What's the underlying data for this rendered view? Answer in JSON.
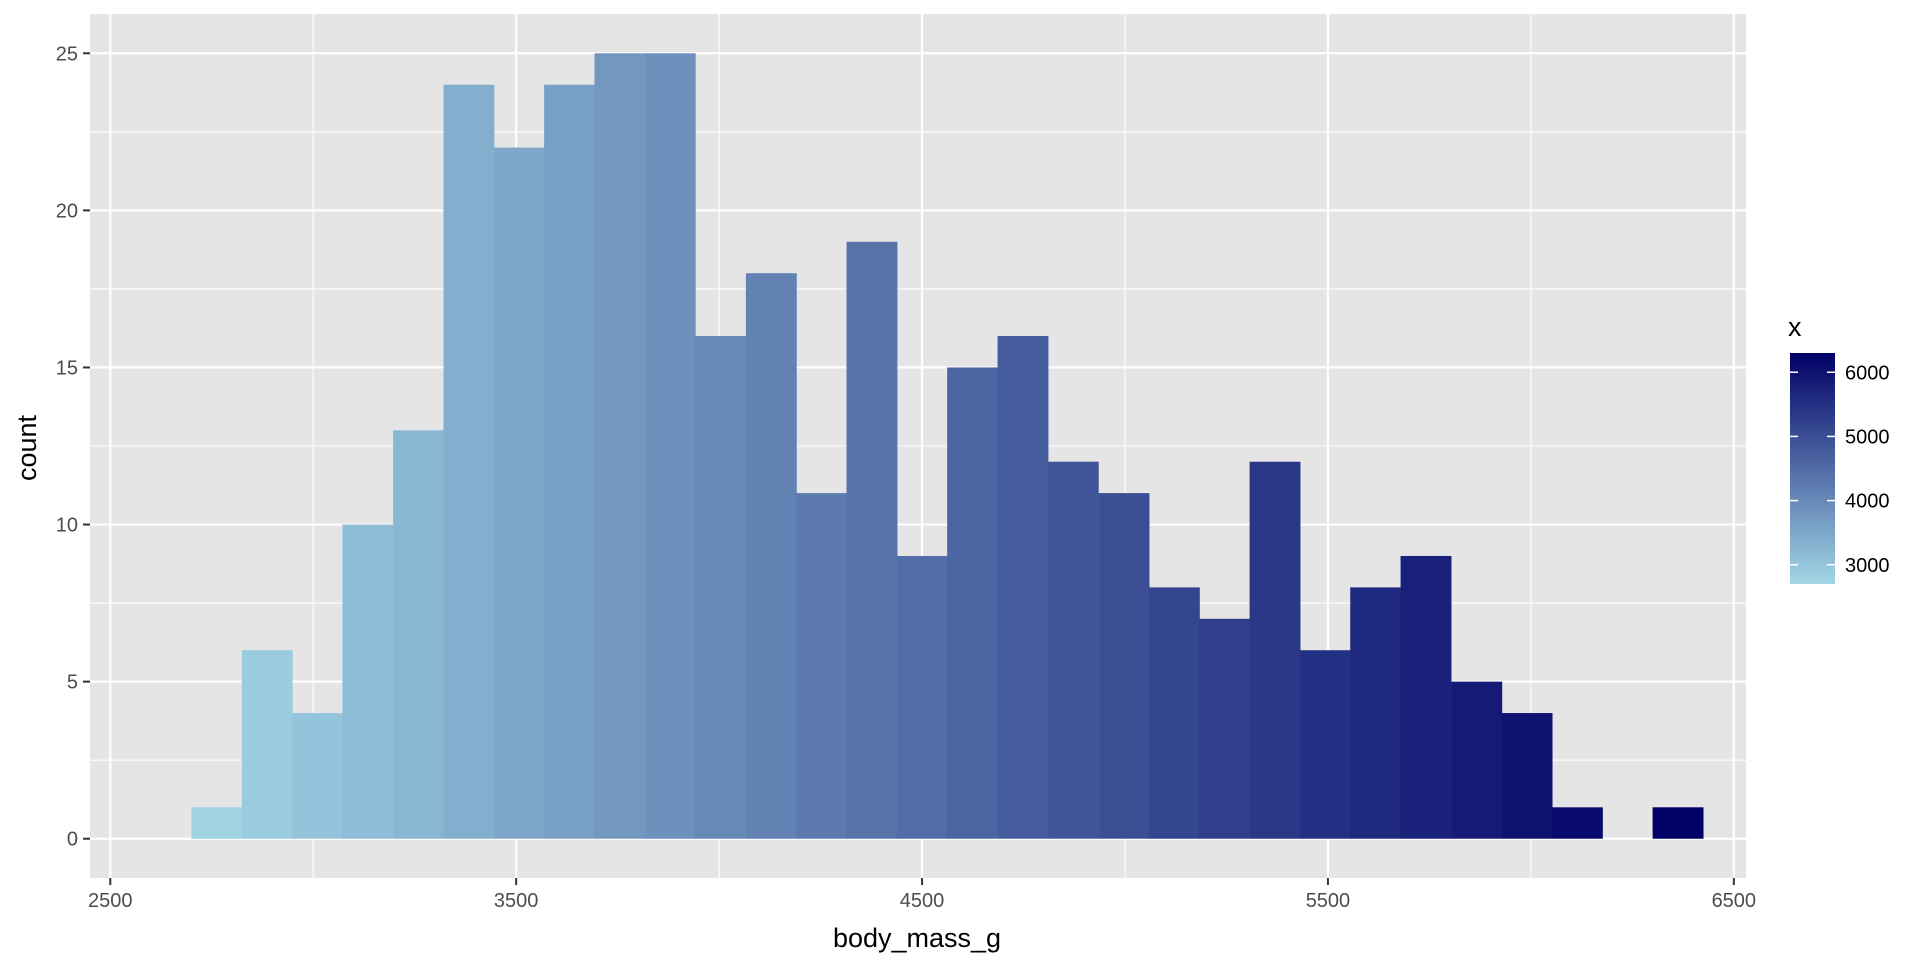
{
  "chart_data": {
    "type": "bar",
    "subtype": "histogram",
    "xlabel": "body_mass_g",
    "ylabel": "count",
    "xlim": [
      2450,
      6530
    ],
    "ylim": [
      -1.25,
      26.25
    ],
    "x_ticks": [
      2500,
      3500,
      4500,
      5500,
      6500
    ],
    "y_ticks": [
      0,
      5,
      10,
      15,
      20,
      25
    ],
    "grid": true,
    "bin_width": 124.14,
    "bins": [
      {
        "x": 2762,
        "count": 1
      },
      {
        "x": 2886,
        "count": 6
      },
      {
        "x": 3010,
        "count": 4
      },
      {
        "x": 3134,
        "count": 10
      },
      {
        "x": 3259,
        "count": 13
      },
      {
        "x": 3383,
        "count": 24
      },
      {
        "x": 3507,
        "count": 22
      },
      {
        "x": 3631,
        "count": 24
      },
      {
        "x": 3755,
        "count": 25
      },
      {
        "x": 3879,
        "count": 25
      },
      {
        "x": 4003,
        "count": 16
      },
      {
        "x": 4128,
        "count": 18
      },
      {
        "x": 4252,
        "count": 11
      },
      {
        "x": 4376,
        "count": 19
      },
      {
        "x": 4500,
        "count": 9
      },
      {
        "x": 4624,
        "count": 15
      },
      {
        "x": 4748,
        "count": 16
      },
      {
        "x": 4872,
        "count": 12
      },
      {
        "x": 4997,
        "count": 11
      },
      {
        "x": 5121,
        "count": 8
      },
      {
        "x": 5245,
        "count": 7
      },
      {
        "x": 5369,
        "count": 12
      },
      {
        "x": 5493,
        "count": 6
      },
      {
        "x": 5617,
        "count": 8
      },
      {
        "x": 5741,
        "count": 9
      },
      {
        "x": 5866,
        "count": 5
      },
      {
        "x": 5990,
        "count": 4
      },
      {
        "x": 6114,
        "count": 1
      },
      {
        "x": 6238,
        "count": 0
      },
      {
        "x": 6362,
        "count": 1
      }
    ],
    "legend": {
      "title": "x",
      "placement": "right",
      "ticks": [
        3000,
        4000,
        5000,
        6000
      ],
      "range": [
        2700,
        6300
      ],
      "low_color": "#a2d7e6",
      "high_color": "#000066"
    },
    "colors": {
      "panel_background": "#e5e5e5",
      "gridline": "#ffffff"
    }
  }
}
